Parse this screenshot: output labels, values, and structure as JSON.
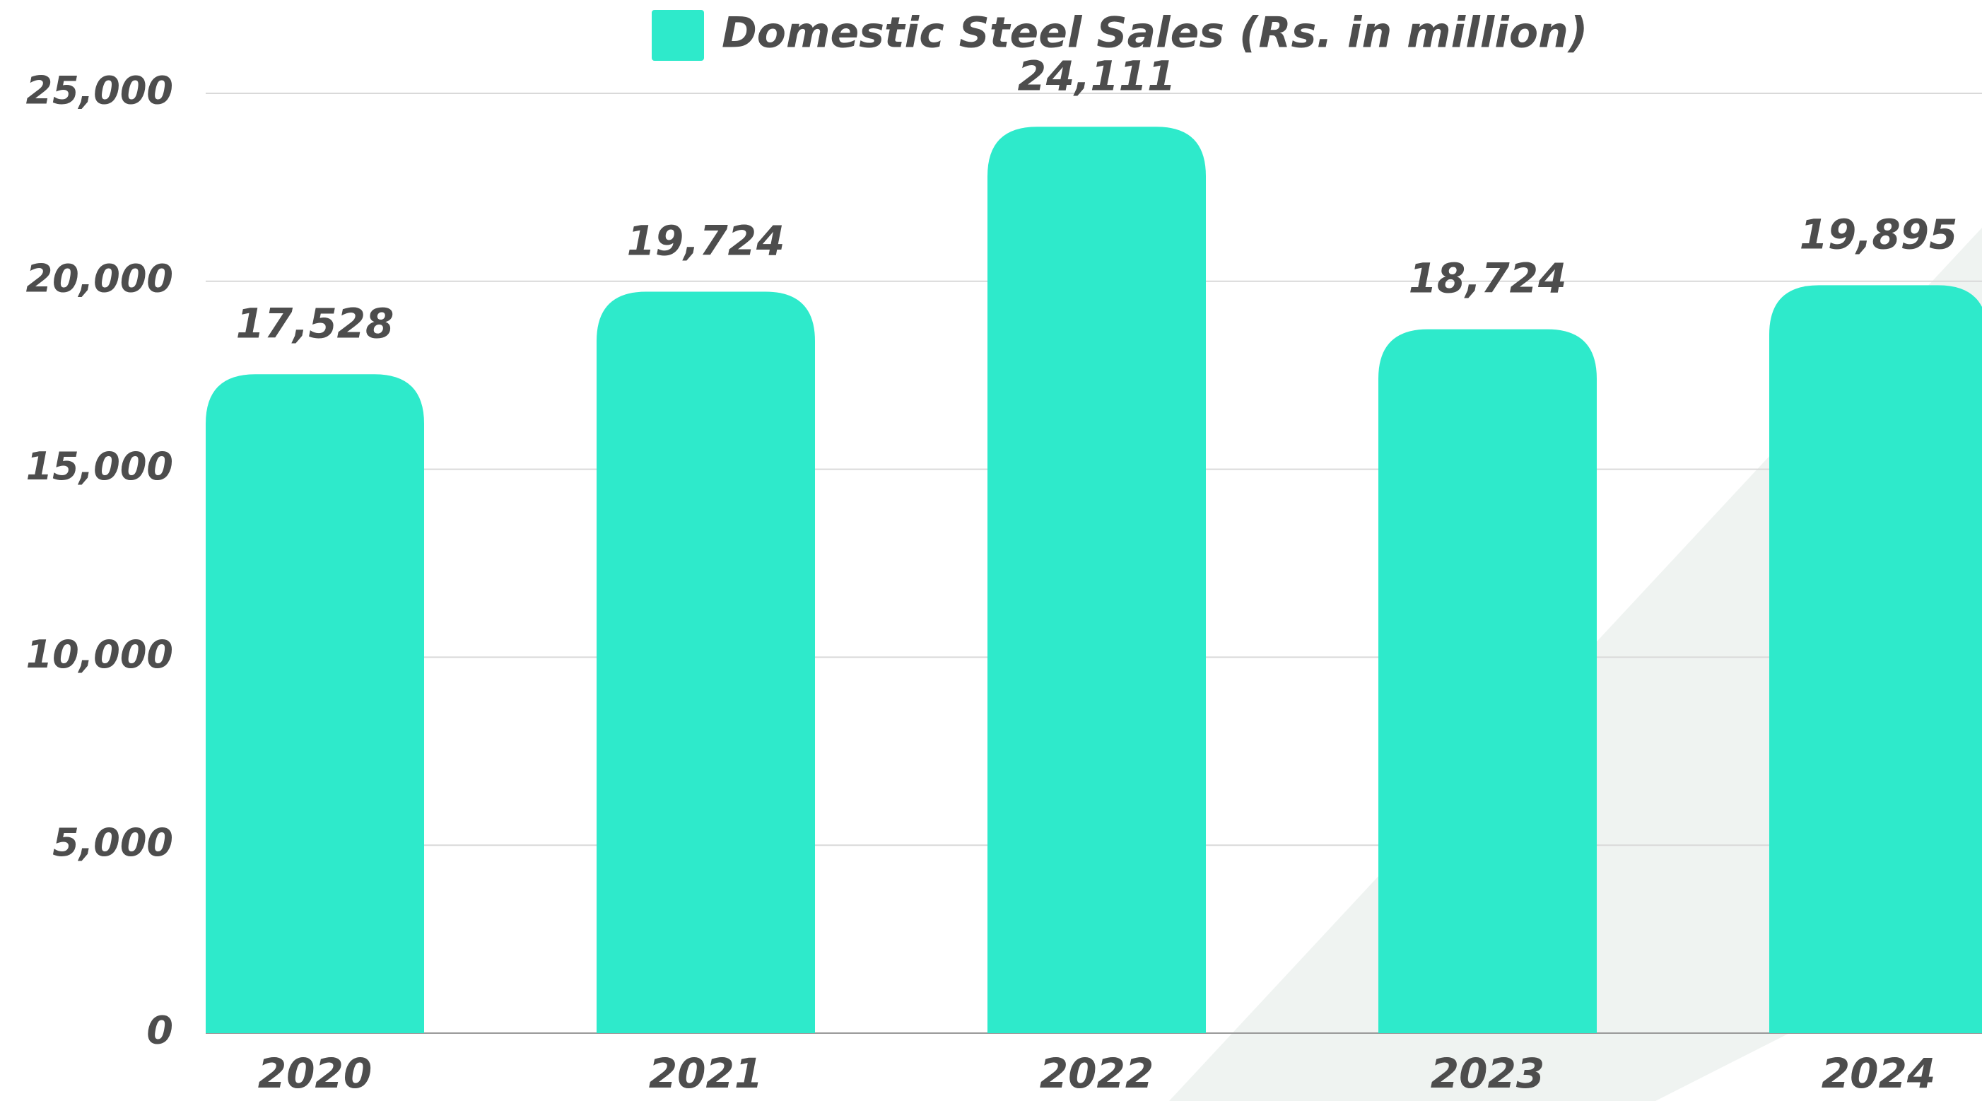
{
  "chart_data": {
    "type": "bar",
    "categories": [
      "2020",
      "2021",
      "2022",
      "2023",
      "2024"
    ],
    "series": [
      {
        "name": "Domestic Steel Sales (Rs. in million)",
        "color": "#2eeacb",
        "values": [
          17528,
          19724,
          24111,
          18724,
          19895
        ],
        "value_labels": [
          "17,528",
          "19,724",
          "24,111",
          "18,724",
          "19,895"
        ]
      }
    ],
    "ylim": [
      0,
      25000
    ],
    "yticks": [
      0,
      {
        "value": 5000,
        "label": "5,000"
      },
      {
        "value": 10000,
        "label": "10,000"
      },
      {
        "value": 15000,
        "label": "15,000"
      },
      {
        "value": 20000,
        "label": "20,000"
      },
      {
        "value": 25000,
        "label": "25,000"
      }
    ],
    "grid": true,
    "legend": "top"
  }
}
